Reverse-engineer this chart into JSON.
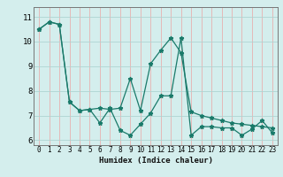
{
  "line1_x": [
    0,
    1,
    2,
    3,
    4,
    5,
    6,
    7,
    8,
    9,
    10,
    11,
    12,
    13,
    14,
    15,
    16,
    17,
    18,
    19,
    20,
    21,
    22,
    23
  ],
  "line1_y": [
    10.5,
    10.8,
    10.7,
    7.55,
    7.2,
    7.25,
    6.7,
    7.3,
    6.4,
    6.2,
    6.65,
    7.1,
    7.8,
    7.8,
    10.15,
    6.2,
    6.55,
    6.55,
    6.5,
    6.5,
    6.2,
    6.45,
    6.8,
    6.3
  ],
  "line2_x": [
    0,
    1,
    2,
    3,
    4,
    5,
    6,
    7,
    8,
    9,
    10,
    11,
    12,
    13,
    14,
    15,
    16,
    17,
    18,
    19,
    20,
    21,
    22,
    23
  ],
  "line2_y": [
    10.5,
    10.8,
    10.7,
    7.55,
    7.2,
    7.25,
    7.3,
    7.25,
    7.3,
    8.5,
    7.2,
    9.1,
    9.65,
    10.15,
    9.55,
    7.15,
    7.0,
    6.9,
    6.8,
    6.7,
    6.65,
    6.6,
    6.55,
    6.5
  ],
  "line_color": "#1a7a6a",
  "bg_color": "#d4eeed",
  "grid_color": "#aed4d2",
  "grid_red_color": "#e8b0b0",
  "xlabel": "Humidex (Indice chaleur)",
  "ylim": [
    5.8,
    11.4
  ],
  "xlim": [
    -0.5,
    23.5
  ],
  "yticks": [
    6,
    7,
    8,
    9,
    10,
    11
  ],
  "xticks": [
    0,
    1,
    2,
    3,
    4,
    5,
    6,
    7,
    8,
    9,
    10,
    11,
    12,
    13,
    14,
    15,
    16,
    17,
    18,
    19,
    20,
    21,
    22,
    23
  ]
}
